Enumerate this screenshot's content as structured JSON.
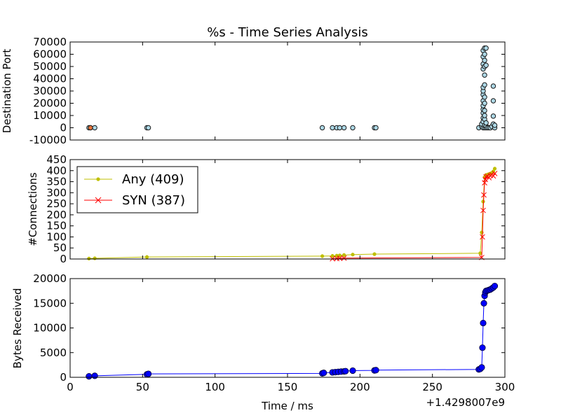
{
  "chart_data": [
    {
      "type": "scatter",
      "title": "%s - Time Series Analysis",
      "xlabel": "",
      "ylabel": "Destination Port",
      "xlim": [
        0,
        300
      ],
      "ylim": [
        -10000,
        70000
      ],
      "xticks": [
        0,
        50,
        100,
        150,
        200,
        250,
        300
      ],
      "yticks": [
        -10000,
        0,
        10000,
        20000,
        30000,
        40000,
        50000,
        60000,
        70000
      ],
      "x_tick_labels_visible": false,
      "colors": {
        "marker_fill": "#add8e6",
        "marker_edge": "#1a1a1a",
        "highlight_fill": "#e8743b"
      },
      "series": [
        {
          "points": [
            [
              13,
              0
            ],
            [
              14,
              0
            ],
            [
              17,
              0
            ],
            [
              53,
              0
            ],
            [
              54,
              0
            ],
            [
              174,
              0
            ],
            [
              181,
              0
            ],
            [
              184,
              0
            ],
            [
              186,
              0
            ],
            [
              189,
              0
            ],
            [
              195,
              0
            ],
            [
              210,
              0
            ],
            [
              211,
              0
            ],
            [
              282,
              0
            ],
            [
              284,
              1000
            ],
            [
              284,
              3000
            ],
            [
              285,
              0
            ],
            [
              285,
              5000
            ],
            [
              285,
              8000
            ],
            [
              285,
              12000
            ],
            [
              285,
              15000
            ],
            [
              285,
              18000
            ],
            [
              285,
              22000
            ],
            [
              285,
              27000
            ],
            [
              285,
              30000
            ],
            [
              285,
              33000
            ],
            [
              285,
              48000
            ],
            [
              285,
              52000
            ],
            [
              285,
              58000
            ],
            [
              285,
              63000
            ],
            [
              286,
              0
            ],
            [
              286,
              2000
            ],
            [
              286,
              7000
            ],
            [
              286,
              10000
            ],
            [
              286,
              14000
            ],
            [
              286,
              20000
            ],
            [
              286,
              25000
            ],
            [
              286,
              35000
            ],
            [
              286,
              43000
            ],
            [
              286,
              50000
            ],
            [
              286,
              55000
            ],
            [
              286,
              60000
            ],
            [
              286,
              65000
            ],
            [
              287,
              0
            ],
            [
              287,
              1500
            ],
            [
              287,
              4000
            ],
            [
              287,
              51000
            ],
            [
              287,
              65000
            ],
            [
              288,
              0
            ],
            [
              289,
              0
            ],
            [
              290,
              0
            ],
            [
              291,
              1000
            ],
            [
              292,
              3000
            ],
            [
              292,
              9500
            ],
            [
              292,
              22000
            ],
            [
              292,
              34000
            ],
            [
              293,
              0
            ],
            [
              293,
              2000
            ]
          ]
        },
        {
          "points": [
            [
              14,
              0
            ]
          ],
          "highlight": true
        }
      ]
    },
    {
      "type": "line",
      "xlabel": "",
      "ylabel": "#Connections",
      "xlim": [
        0,
        300
      ],
      "ylim": [
        0,
        450
      ],
      "xticks": [
        0,
        50,
        100,
        150,
        200,
        250,
        300
      ],
      "yticks": [
        0,
        50,
        100,
        150,
        200,
        250,
        300,
        350,
        400,
        450
      ],
      "x_tick_labels_visible": false,
      "legend_position": "upper-left",
      "series": [
        {
          "name": "Any (409)",
          "color": "#bfbf00",
          "marker": "dot",
          "x": [
            13,
            17,
            53,
            174,
            181,
            184,
            186,
            189,
            195,
            210,
            283,
            284,
            285,
            286,
            287,
            288,
            289,
            290,
            291,
            292,
            293
          ],
          "y": [
            2,
            3,
            9,
            13,
            14,
            15,
            16,
            18,
            20,
            22,
            26,
            120,
            260,
            370,
            380,
            382,
            384,
            386,
            390,
            396,
            409
          ]
        },
        {
          "name": "SYN (387)",
          "color": "#ff0000",
          "marker": "x",
          "x": [
            181,
            184,
            186,
            189,
            284,
            284.5,
            285,
            285.5,
            286,
            286.5,
            287,
            288,
            289,
            290,
            291,
            292,
            293
          ],
          "y": [
            1,
            2,
            3,
            4,
            7,
            100,
            220,
            290,
            345,
            360,
            372,
            375,
            368,
            378,
            382,
            376,
            387
          ]
        }
      ]
    },
    {
      "type": "line",
      "xlabel": "Time / ms",
      "ylabel": "Bytes Received",
      "xlim": [
        0,
        300
      ],
      "ylim": [
        0,
        20000
      ],
      "xticks": [
        0,
        50,
        100,
        150,
        200,
        250,
        300
      ],
      "yticks": [
        0,
        5000,
        10000,
        15000,
        20000
      ],
      "x_offset_label": "+1.4298007e9",
      "series": [
        {
          "color": "#0000ff",
          "marker": "dot",
          "x": [
            13,
            17,
            53,
            54,
            174,
            175,
            181,
            183,
            185,
            187,
            189,
            190,
            195,
            210,
            211,
            282,
            283,
            284,
            284.5,
            285,
            285.5,
            286,
            286.5,
            287,
            288,
            289,
            290,
            291,
            292,
            293
          ],
          "y": [
            200,
            300,
            600,
            700,
            800,
            900,
            1000,
            1050,
            1100,
            1150,
            1200,
            1250,
            1350,
            1400,
            1450,
            1600,
            1700,
            2000,
            6000,
            11000,
            15000,
            16500,
            17200,
            17500,
            17600,
            17700,
            17800,
            18000,
            18200,
            18500
          ]
        }
      ]
    }
  ]
}
